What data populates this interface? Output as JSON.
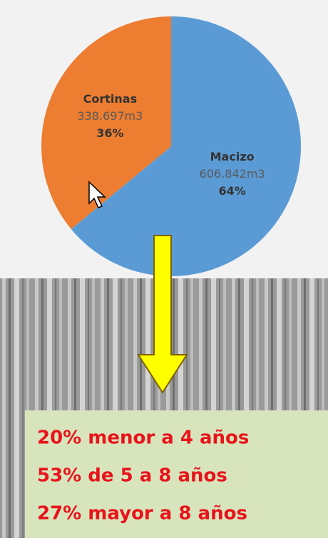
{
  "chart_data": {
    "type": "pie",
    "categories": [
      "Macizo",
      "Cortinas"
    ],
    "values": [
      64,
      36
    ],
    "value_labels": [
      "64%",
      "36%"
    ],
    "volumes": [
      "606.842m3",
      "338.697m3"
    ],
    "colors": [
      "#5b9bd5",
      "#ed7d31"
    ]
  },
  "notes": [
    "20% menor a 4 años",
    "53% de 5 a 8 años",
    "27% mayor a 8 años"
  ]
}
